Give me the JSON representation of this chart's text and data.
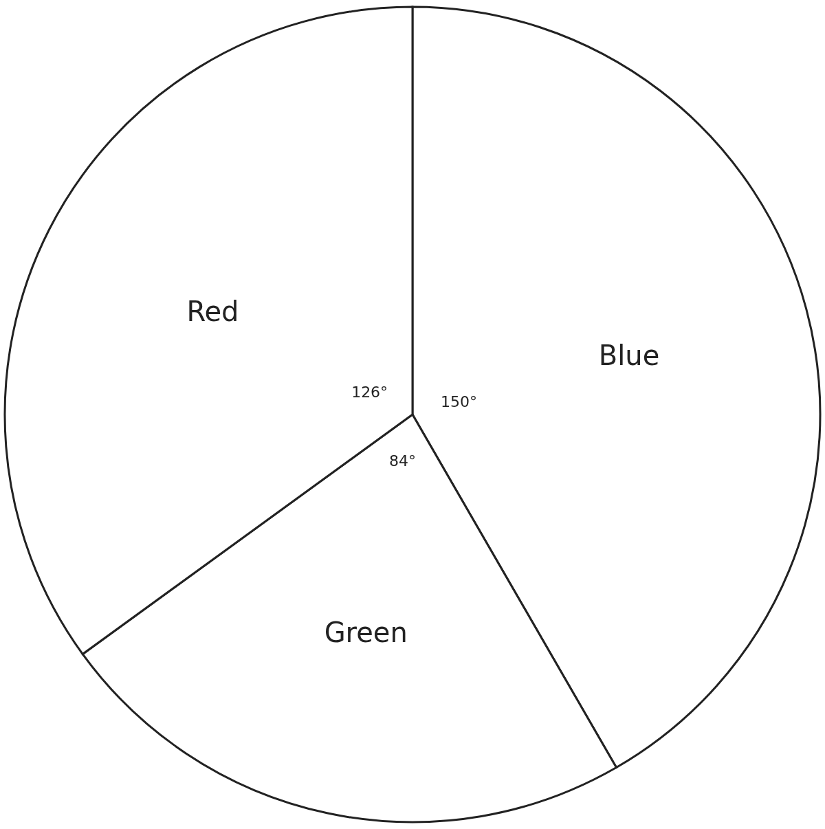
{
  "chart_data": {
    "type": "pie",
    "categories": [
      "Blue",
      "Green",
      "Red"
    ],
    "values": [
      150,
      84,
      126
    ],
    "value_labels": [
      "150°",
      "84°",
      "126°"
    ],
    "colors": [
      "#ffffff",
      "#ffffff",
      "#ffffff"
    ]
  }
}
